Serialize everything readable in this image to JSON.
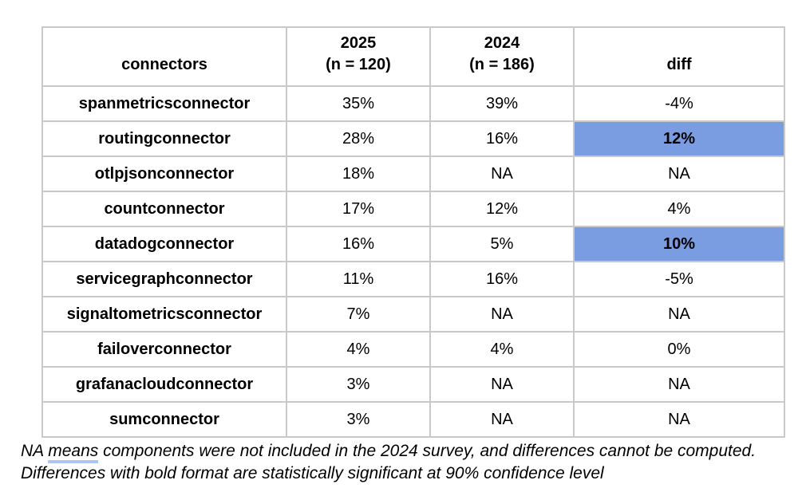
{
  "chart_data": {
    "type": "table",
    "header": {
      "col_connectors": "connectors",
      "col_2025_line1": "2025",
      "col_2025_line2": "(n = 120)",
      "col_2024_line1": "2024",
      "col_2024_line2": "(n = 186)",
      "col_diff": "diff"
    },
    "rows": [
      {
        "name": "spanmetricsconnector",
        "y2025": "35%",
        "y2024": "39%",
        "diff": "-4%",
        "diff_highlight": false
      },
      {
        "name": "routingconnector",
        "y2025": "28%",
        "y2024": "16%",
        "diff": "12%",
        "diff_highlight": true
      },
      {
        "name": "otlpjsonconnector",
        "y2025": "18%",
        "y2024": "NA",
        "diff": "NA",
        "diff_highlight": false
      },
      {
        "name": "countconnector",
        "y2025": "17%",
        "y2024": "12%",
        "diff": "4%",
        "diff_highlight": false
      },
      {
        "name": "datadogconnector",
        "y2025": "16%",
        "y2024": "5%",
        "diff": "10%",
        "diff_highlight": true
      },
      {
        "name": "servicegraphconnector",
        "y2025": "11%",
        "y2024": "16%",
        "diff": "-5%",
        "diff_highlight": false
      },
      {
        "name": "signaltometricsconnector",
        "y2025": "7%",
        "y2024": "NA",
        "diff": "NA",
        "diff_highlight": false
      },
      {
        "name": "failoverconnector",
        "y2025": "4%",
        "y2024": "4%",
        "diff": "0%",
        "diff_highlight": false
      },
      {
        "name": "grafanacloudconnector",
        "y2025": "3%",
        "y2024": "NA",
        "diff": "NA",
        "diff_highlight": false
      },
      {
        "name": "sumconnector",
        "y2025": "3%",
        "y2024": "NA",
        "diff": "NA",
        "diff_highlight": false
      }
    ],
    "footnote": {
      "line1_prefix": "NA ",
      "line1_underlined_word": "means",
      "line1_suffix": " components were not included in the 2024 survey, and differences cannot be computed.",
      "line2": "Differences with bold format are statistically significant at 90% confidence level"
    },
    "colors": {
      "highlight_blue": "#7a9de2",
      "grid_border": "#c9c9c9",
      "note_underline": "#a9c6f5"
    },
    "layout_hints": {
      "highlight_meaning": "statistically significant difference at 90% confidence level",
      "highlighted_cells": [
        {
          "row": "routingconnector",
          "column": "diff",
          "value": "12%"
        },
        {
          "row": "datadogconnector",
          "column": "diff",
          "value": "10%"
        }
      ]
    }
  }
}
